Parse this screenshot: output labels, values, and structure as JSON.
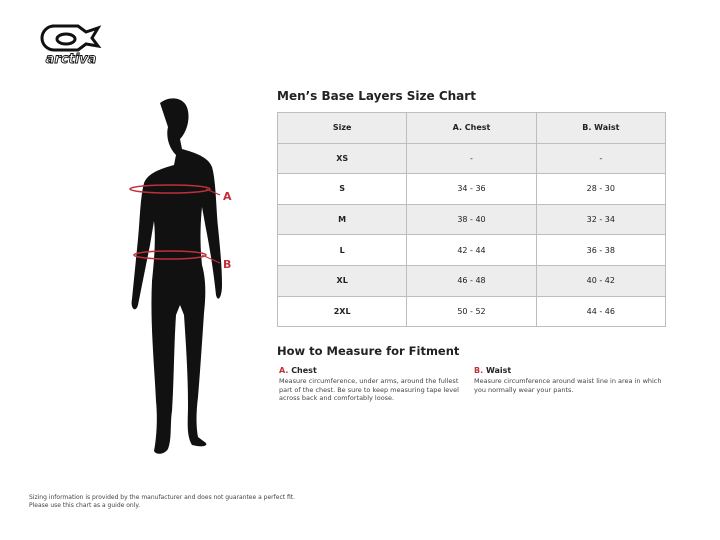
{
  "brand": {
    "logo_text": "arctiva"
  },
  "figure": {
    "markers": [
      {
        "label": "A"
      },
      {
        "label": "B"
      }
    ],
    "accent": "#c0303a"
  },
  "chart": {
    "title": "Men’s Base Layers Size Chart",
    "headers": [
      "Size",
      "A. Chest",
      "B. Waist"
    ],
    "rows": [
      [
        "XS",
        "-",
        "-"
      ],
      [
        "S",
        "34 - 36",
        "28 - 30"
      ],
      [
        "M",
        "38 - 40",
        "32 - 34"
      ],
      [
        "L",
        "42 - 44",
        "36 - 38"
      ],
      [
        "XL",
        "46 - 48",
        "40 - 42"
      ],
      [
        "2XL",
        "50 - 52",
        "44 - 46"
      ]
    ]
  },
  "measure": {
    "title": "How to Measure for Fitment",
    "items": [
      {
        "letter": "A.",
        "name": "Chest",
        "text": "Measure circumference, under arms, around the fullest part of the chest. Be sure to keep measuring tape level across back and comfortably loose."
      },
      {
        "letter": "B.",
        "name": "Waist",
        "text": "Measure circumference around waist line in area in which you normally wear your pants."
      }
    ]
  },
  "footer": {
    "line1": "Sizing information is provided by the manufacturer and does not guarantee a perfect fit.",
    "line2": "Please use this chart as a guide only."
  }
}
